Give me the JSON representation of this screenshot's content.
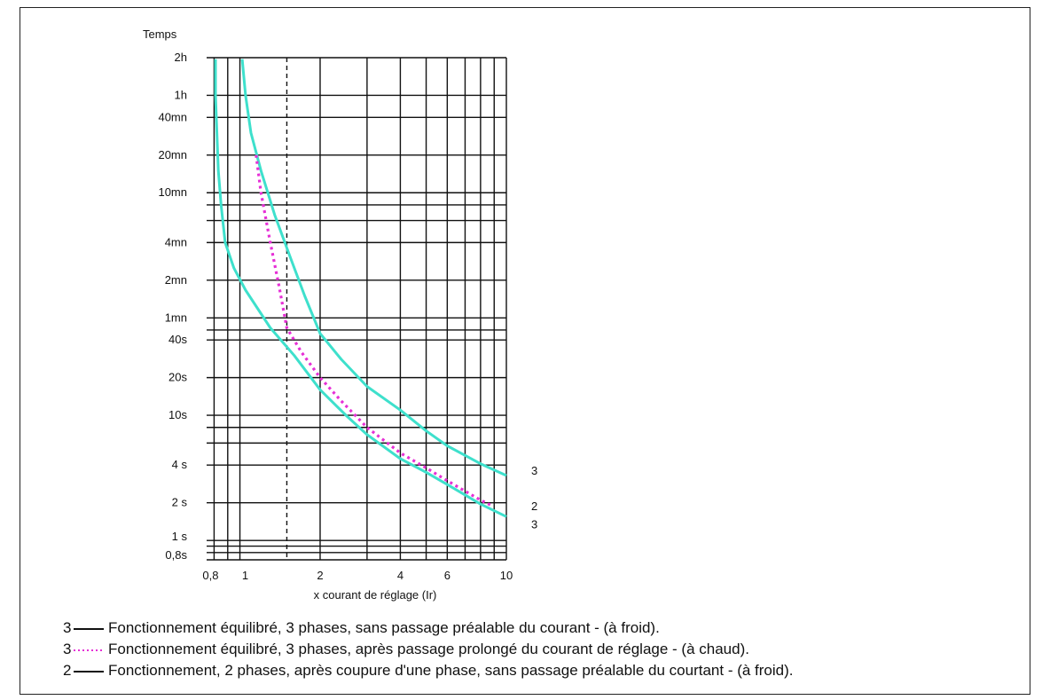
{
  "chart_data": {
    "type": "line",
    "ylabel": "Temps",
    "xlabel": "x courant de réglage (Ir)",
    "xscale": "log",
    "yscale": "log",
    "xlim": [
      0.75,
      10
    ],
    "ylim_seconds": [
      0.7,
      7200
    ],
    "grid": true,
    "y_ticks": [
      {
        "label": "2h",
        "seconds": 7200
      },
      {
        "label": "1h",
        "seconds": 3600
      },
      {
        "label": "40mn",
        "seconds": 2400
      },
      {
        "label": "20mn",
        "seconds": 1200
      },
      {
        "label": "10mn",
        "seconds": 600
      },
      {
        "label": "4mn",
        "seconds": 240
      },
      {
        "label": "2mn",
        "seconds": 120
      },
      {
        "label": "1mn",
        "seconds": 60
      },
      {
        "label": "40s",
        "seconds": 40
      },
      {
        "label": "20s",
        "seconds": 20
      },
      {
        "label": "10s",
        "seconds": 10
      },
      {
        "label": "4 s",
        "seconds": 4
      },
      {
        "label": "2 s",
        "seconds": 2
      },
      {
        "label": "1 s",
        "seconds": 1
      },
      {
        "label": "0,8s",
        "seconds": 0.8
      }
    ],
    "y_grid_seconds": [
      7200,
      3600,
      2400,
      1200,
      600,
      480,
      360,
      240,
      120,
      60,
      48,
      40,
      20,
      10,
      8,
      6,
      4,
      2,
      1,
      0.9,
      0.8,
      0.7
    ],
    "x_ticks": [
      {
        "label": "0,8",
        "value": 0.8
      },
      {
        "label": "1",
        "value": 1
      },
      {
        "label": "2",
        "value": 2
      },
      {
        "label": "4",
        "value": 4
      },
      {
        "label": "6",
        "value": 6
      },
      {
        "label": "10",
        "value": 10
      }
    ],
    "x_grid": [
      0.8,
      0.9,
      1,
      1.5,
      2,
      3,
      4,
      5,
      6,
      7,
      8,
      9,
      10
    ],
    "x_grid_dashed": [
      1.5
    ],
    "series": [
      {
        "label": "3",
        "style": "solid",
        "color": "#3ee0cc",
        "points": [
          [
            1.02,
            7000
          ],
          [
            1.05,
            3600
          ],
          [
            1.1,
            1800
          ],
          [
            1.2,
            900
          ],
          [
            1.35,
            400
          ],
          [
            1.55,
            180
          ],
          [
            1.75,
            90
          ],
          [
            2.0,
            45
          ],
          [
            2.4,
            28
          ],
          [
            3.0,
            17
          ],
          [
            4.0,
            11
          ],
          [
            5.0,
            7.5
          ],
          [
            6.0,
            5.7
          ],
          [
            8.0,
            4.1
          ],
          [
            10.0,
            3.3
          ]
        ]
      },
      {
        "label": "2",
        "style": "dotted",
        "color": "#e62fd6",
        "points": [
          [
            1.15,
            1200
          ],
          [
            1.2,
            600
          ],
          [
            1.3,
            240
          ],
          [
            1.4,
            110
          ],
          [
            1.5,
            50
          ],
          [
            1.7,
            32
          ],
          [
            2.0,
            20
          ],
          [
            2.4,
            13
          ],
          [
            3.0,
            8
          ],
          [
            4.0,
            5
          ],
          [
            5.0,
            3.8
          ],
          [
            6.0,
            3.0
          ],
          [
            8.0,
            2.1
          ],
          [
            8.8,
            1.9
          ]
        ]
      },
      {
        "label": "3",
        "style": "solid",
        "color": "#3ee0cc",
        "points": [
          [
            0.81,
            7000
          ],
          [
            0.81,
            3600
          ],
          [
            0.82,
            1800
          ],
          [
            0.83,
            900
          ],
          [
            0.85,
            480
          ],
          [
            0.88,
            240
          ],
          [
            0.95,
            150
          ],
          [
            1.05,
            100
          ],
          [
            1.3,
            50
          ],
          [
            1.6,
            30
          ],
          [
            2.0,
            16
          ],
          [
            2.5,
            10
          ],
          [
            3.0,
            7
          ],
          [
            4.0,
            4.5
          ],
          [
            5.0,
            3.5
          ],
          [
            6.0,
            2.8
          ],
          [
            8.0,
            1.95
          ],
          [
            10.0,
            1.55
          ]
        ]
      }
    ]
  },
  "legend": [
    {
      "num": "3",
      "style": "solid",
      "text": "Fonctionnement équilibré, 3 phases, sans passage préalable du courant - (à froid)."
    },
    {
      "num": "3",
      "style": "dotted",
      "text": "Fonctionnement équilibré, 3 phases, après passage prolongé du courant de réglage - (à chaud)."
    },
    {
      "num": "2",
      "style": "solid",
      "text": "Fonctionnement, 2 phases, après coupure d'une phase, sans passage préalable du courtant - (à froid)."
    }
  ]
}
